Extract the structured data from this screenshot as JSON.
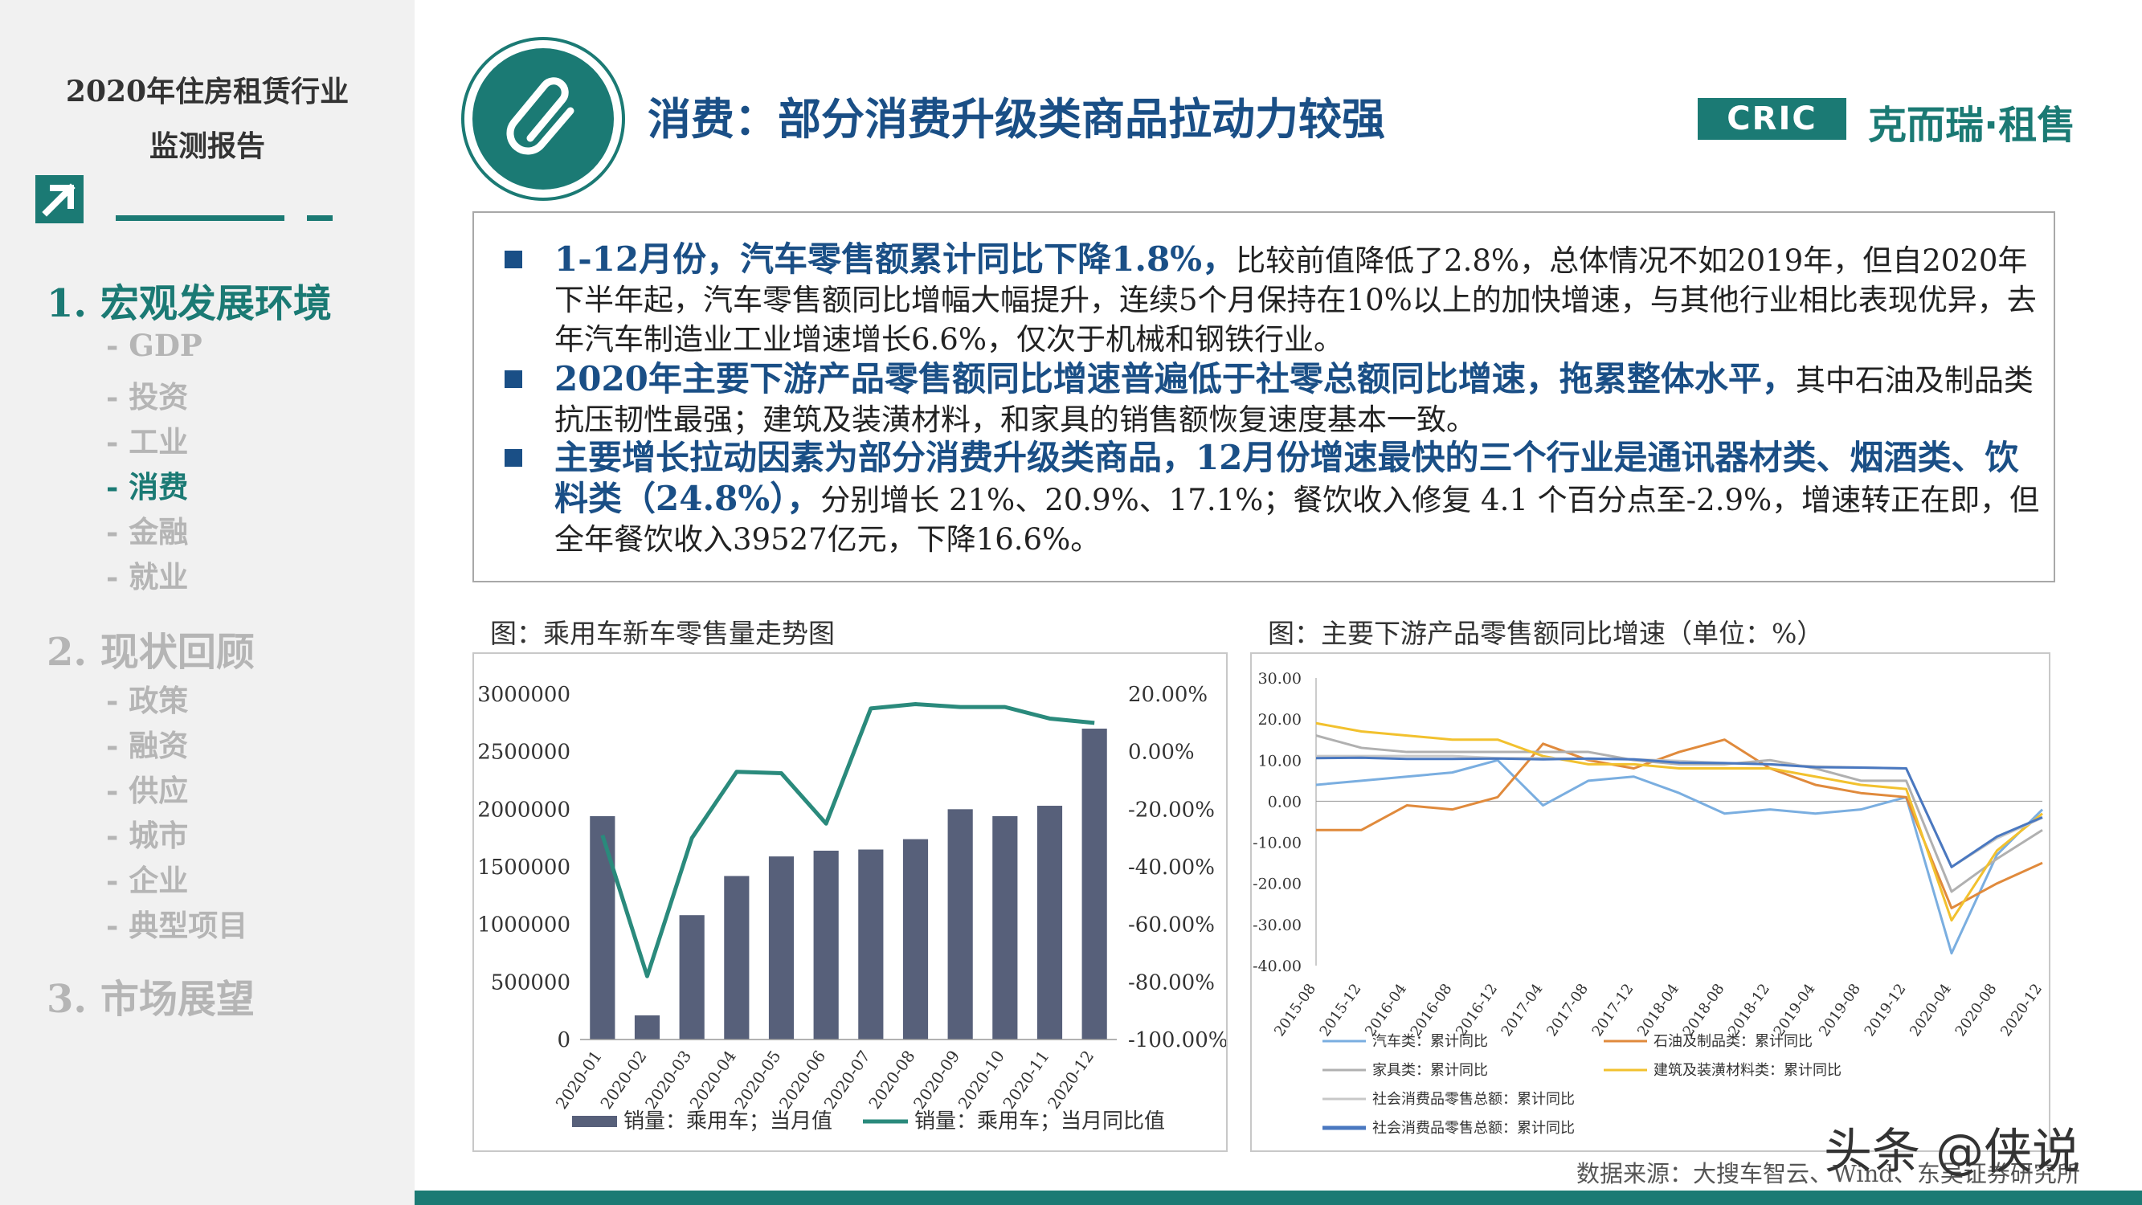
{
  "sidebar": {
    "report_title_line1": "2020年住房租赁行业",
    "report_title_line2": "监测报告",
    "sections": [
      {
        "label": "1. 宏观发展环境",
        "active": true,
        "items": [
          "- GDP",
          "- 投资",
          "- 工业",
          "- 消费",
          "- 金融",
          "- 就业"
        ],
        "active_item": 3
      },
      {
        "label": "2. 现状回顾",
        "active": false,
        "items": [
          "- 政策",
          "- 融资",
          "- 供应",
          "- 城市",
          "- 企业",
          "- 典型项目"
        ]
      },
      {
        "label": "3. 市场展望",
        "active": false,
        "items": []
      }
    ]
  },
  "header": {
    "title": "消费：部分消费升级类商品拉动力较强",
    "brand_box": "CRIC",
    "brand_text": "克而瑞·租售",
    "logo_icon": "paperclip-icon"
  },
  "bullets": [
    {
      "highlight": "1-12月份，汽车零售额累计同比下降1.8%，",
      "text": "比较前值降低了2.8%，总体情况不如2019年，但自2020年下半年起，汽车零售额同比增幅大幅提升，连续5个月保持在10%以上的加快增速，与其他行业相比表现优异，去年汽车制造业工业增速增长6.6%，仅次于机械和钢铁行业。"
    },
    {
      "highlight": "2020年主要下游产品零售额同比增速普遍低于社零总额同比增速，拖累整体水平，",
      "text": "其中石油及制品类抗压韧性最强；建筑及装潢材料，和家具的销售额恢复速度基本一致。"
    },
    {
      "highlight": "主要增长拉动因素为部分消费升级类商品，12月份增速最快的三个行业是通讯器材类、烟酒类、饮料类（24.8%），",
      "text": "分别增长 21%、20.9%、17.1%；餐饮收入修复 4.1 个百分点至-2.9%，增速转正在即，但全年餐饮收入39527亿元，下降16.6%。"
    }
  ],
  "captions": {
    "left": "图：乘用车新车零售量走势图",
    "right": "图：主要下游产品零售额同比增速（单位：%）"
  },
  "chart_data": [
    {
      "type": "bar",
      "categories": [
        "2020-01",
        "2020-02",
        "2020-03",
        "2020-04",
        "2020-05",
        "2020-06",
        "2020-07",
        "2020-08",
        "2020-09",
        "2020-10",
        "2020-11",
        "2020-12"
      ],
      "series": [
        {
          "name": "销量：乘用车；当月值",
          "type": "bar",
          "axis": "left",
          "color": "#57607a",
          "values": [
            1940000,
            210000,
            1080000,
            1420000,
            1590000,
            1640000,
            1650000,
            1740000,
            2000000,
            1940000,
            2030000,
            2700000
          ]
        },
        {
          "name": "销量：乘用车；当月同比值",
          "type": "line",
          "axis": "right",
          "color": "#2a8a7c",
          "values": [
            -0.29,
            -0.78,
            -0.3,
            -0.07,
            -0.075,
            -0.25,
            0.15,
            0.165,
            0.155,
            0.155,
            0.115,
            0.1
          ]
        }
      ],
      "yleft": {
        "min": 0,
        "max": 3000000,
        "ticks": [
          "0",
          "500000",
          "1000000",
          "1500000",
          "2000000",
          "2500000",
          "3000000"
        ]
      },
      "yright": {
        "min": -1.0,
        "max": 0.2,
        "ticks": [
          "-100.00%",
          "-80.00%",
          "-60.00%",
          "-40.00%",
          "-20.00%",
          "0.00%",
          "20.00%"
        ]
      },
      "legend": "bottom"
    },
    {
      "type": "line",
      "x": [
        "2015-08",
        "2015-12",
        "2016-04",
        "2016-08",
        "2016-12",
        "2017-04",
        "2017-08",
        "2017-12",
        "2018-04",
        "2018-08",
        "2018-12",
        "2019-04",
        "2019-08",
        "2019-12",
        "2020-04",
        "2020-08",
        "2020-12"
      ],
      "ylim": [
        -40,
        30
      ],
      "yticks": [
        "30.00",
        "20.00",
        "10.00",
        "0.00",
        "-10.00",
        "-20.00",
        "-30.00",
        "-40.00"
      ],
      "series": [
        {
          "name": "汽车类：累计同比",
          "color": "#7aaee0",
          "values": [
            4,
            5,
            6,
            7,
            10,
            -1,
            5,
            6,
            2,
            -3,
            -2,
            -3,
            -2,
            1,
            -37,
            -13,
            -2
          ]
        },
        {
          "name": "石油及制品类：累计同比",
          "color": "#e08a3c",
          "values": [
            -7,
            -7,
            -1,
            -2,
            1,
            14,
            10,
            8,
            12,
            15,
            8,
            4,
            2,
            1,
            -26,
            -20,
            -15
          ]
        },
        {
          "name": "家具类：累计同比",
          "color": "#b0b0b0",
          "values": [
            16,
            13,
            12,
            12,
            12,
            12,
            12,
            10,
            9,
            9,
            10,
            8,
            5,
            5,
            -22,
            -14,
            -7
          ]
        },
        {
          "name": "建筑及装潢材料类：累计同比",
          "color": "#f2c12e",
          "values": [
            19,
            17,
            16,
            15,
            15,
            11,
            9,
            9,
            8,
            8,
            8,
            6,
            4,
            3,
            -29,
            -12,
            -3
          ]
        },
        {
          "name": "社会消费品零售总额：累计同比",
          "color": "#c8c8c8",
          "values": [
            11,
            11,
            11,
            11,
            10.5,
            10.5,
            10.3,
            10.2,
            9.8,
            9.3,
            9.0,
            8.5,
            8.2,
            8.0,
            -16,
            -9,
            -4
          ]
        },
        {
          "name": "社会消费品零售总额：累计同比",
          "color": "#4a78c0",
          "values": [
            10.5,
            10.6,
            10.3,
            10.3,
            10.4,
            10.2,
            10.4,
            10.2,
            9.4,
            9.3,
            9.0,
            8.3,
            8.2,
            8.0,
            -16,
            -8.6,
            -3.9
          ]
        }
      ],
      "legend": "bottom"
    }
  ],
  "footer": {
    "source": "数据来源：大搜车智云、Wind、东吴证券研究所",
    "watermark": "头条 @侠说"
  }
}
